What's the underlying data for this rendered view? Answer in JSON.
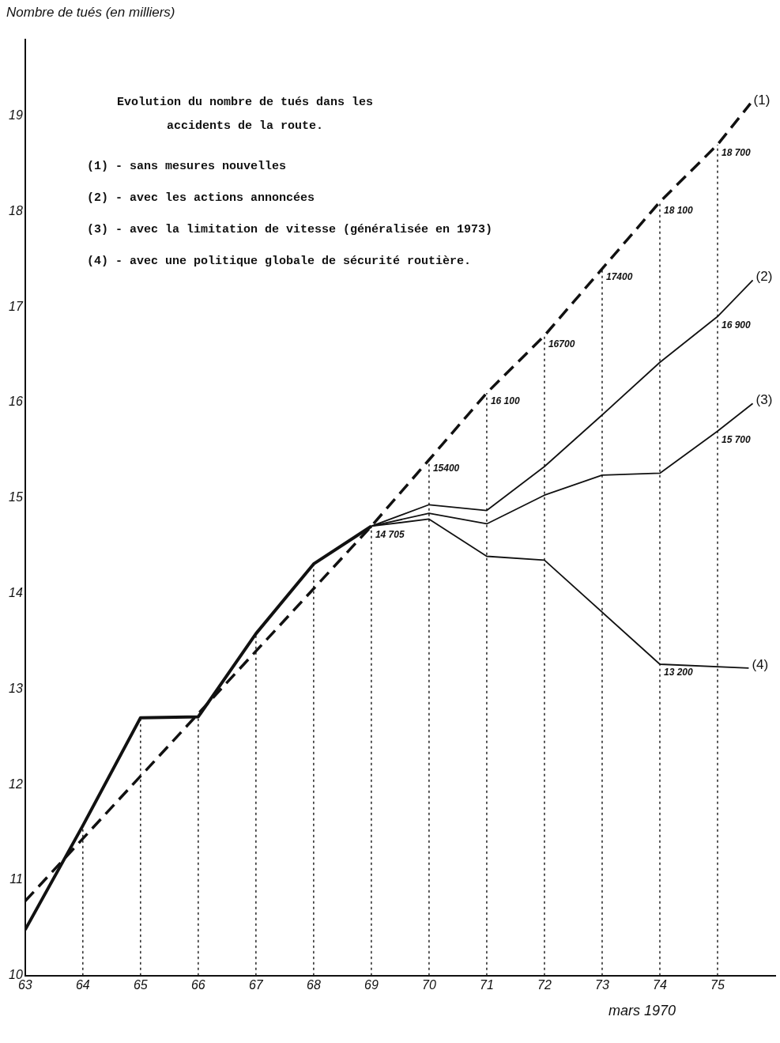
{
  "chart_data": {
    "type": "line",
    "title": "Evolution du nombre de tués dans les accidents de la route.",
    "xlabel": null,
    "ylabel": "Nombre de tués (en milliers)",
    "xlim": [
      63,
      76
    ],
    "xticks": [
      63,
      64,
      65,
      66,
      67,
      68,
      69,
      70,
      71,
      72,
      73,
      74,
      75
    ],
    "ylim": [
      10,
      19.8
    ],
    "yticks": [
      10,
      11,
      12,
      13,
      14,
      15,
      16,
      17,
      18,
      19
    ],
    "grid": false,
    "legend": false,
    "marker": "none",
    "series": [
      {
        "color": "#111111",
        "line_style": "solid",
        "x": [
          63,
          64,
          65,
          66,
          67,
          68,
          69
        ],
        "values": [
          10.48,
          11.57,
          12.7,
          12.71,
          13.58,
          14.31,
          14.705
        ]
      },
      {
        "name": "(1)",
        "color": "#111111",
        "line_style": "dashed",
        "x": [
          63,
          69,
          70,
          71,
          72,
          73,
          74,
          75,
          75.57
        ],
        "values": [
          10.78,
          14.705,
          15.4,
          16.1,
          16.7,
          17.4,
          18.1,
          18.7,
          19.13
        ]
      },
      {
        "name": "(2)",
        "color": "#111111",
        "line_style": "solid",
        "x": [
          69,
          70,
          71,
          72,
          73,
          74,
          75,
          75.61
        ],
        "values": [
          14.705,
          14.93,
          14.87,
          15.33,
          15.87,
          16.42,
          16.9,
          17.28
        ]
      },
      {
        "name": "(3)",
        "color": "#111111",
        "line_style": "solid",
        "x": [
          69,
          70,
          71,
          72,
          73,
          74,
          75,
          75.61
        ],
        "values": [
          14.705,
          14.84,
          14.73,
          15.03,
          15.24,
          15.26,
          15.7,
          15.99
        ]
      },
      {
        "name": "(4)",
        "color": "#111111",
        "line_style": "solid",
        "x": [
          69,
          70,
          71,
          72,
          74,
          75.54
        ],
        "values": [
          14.705,
          14.78,
          14.39,
          14.35,
          13.26,
          13.22
        ]
      }
    ],
    "ref_lines": [
      {
        "axis": "x",
        "value": 64,
        "line_style": "dotted"
      },
      {
        "axis": "x",
        "value": 65,
        "line_style": "dotted"
      },
      {
        "axis": "x",
        "value": 66,
        "line_style": "dotted"
      },
      {
        "axis": "x",
        "value": 67,
        "line_style": "dotted"
      },
      {
        "axis": "x",
        "value": 68,
        "line_style": "dotted"
      },
      {
        "axis": "x",
        "value": 69,
        "line_style": "dotted"
      },
      {
        "axis": "x",
        "value": 70,
        "line_style": "dotted"
      },
      {
        "axis": "x",
        "value": 71,
        "line_style": "dotted"
      },
      {
        "axis": "x",
        "value": 72,
        "line_style": "dotted"
      },
      {
        "axis": "x",
        "value": 73,
        "line_style": "dotted"
      },
      {
        "axis": "x",
        "value": 74,
        "line_style": "dotted"
      },
      {
        "axis": "x",
        "value": 75,
        "line_style": "dotted"
      }
    ],
    "annotations": [
      "(1) - sans mesures nouvelles",
      "(2) - avec les actions annoncées",
      "(3) - avec la limitation de vitesse (généralisée en 1973)",
      "(4) - avec une politique globale de sécurité routière.",
      {
        "text": "14 705",
        "x": 69,
        "y": 14.705
      },
      {
        "text": "15400",
        "x": 70,
        "y": 15.4
      },
      {
        "text": "16 100",
        "x": 71,
        "y": 16.1
      },
      {
        "text": "16700",
        "x": 72,
        "y": 16.7
      },
      {
        "text": "17400",
        "x": 73,
        "y": 17.4
      },
      {
        "text": "18 100",
        "x": 74,
        "y": 18.1
      },
      {
        "text": "18 700",
        "x": 75,
        "y": 18.7
      },
      {
        "text": "16 900",
        "x": 75,
        "y": 16.9
      },
      {
        "text": "15 700",
        "x": 75,
        "y": 15.7
      },
      {
        "text": "13 200",
        "x": 74,
        "y": 13.26
      },
      "mars 1970"
    ]
  }
}
